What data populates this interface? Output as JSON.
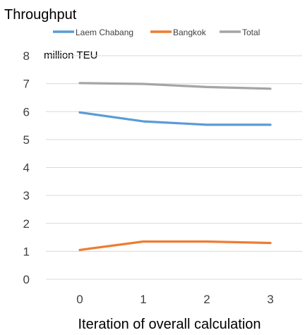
{
  "chart_data": {
    "type": "line",
    "title": "Throughput",
    "ylabel": "million TEU",
    "xlabel": "Iteration of overall calculation",
    "x": [
      0,
      1,
      2,
      3
    ],
    "ylim": [
      0,
      8
    ],
    "yticks": [
      0,
      1,
      2,
      3,
      4,
      5,
      6,
      7,
      8
    ],
    "grid": true,
    "legend": "top",
    "series": [
      {
        "name": "Laem Chabang",
        "color": "#5b9bd5",
        "values": [
          5.97,
          5.65,
          5.53,
          5.53
        ]
      },
      {
        "name": "Bangkok",
        "color": "#ed7d31",
        "values": [
          1.05,
          1.35,
          1.35,
          1.3
        ]
      },
      {
        "name": "Total",
        "color": "#a5a5a5",
        "values": [
          7.02,
          6.99,
          6.88,
          6.82
        ]
      }
    ]
  }
}
